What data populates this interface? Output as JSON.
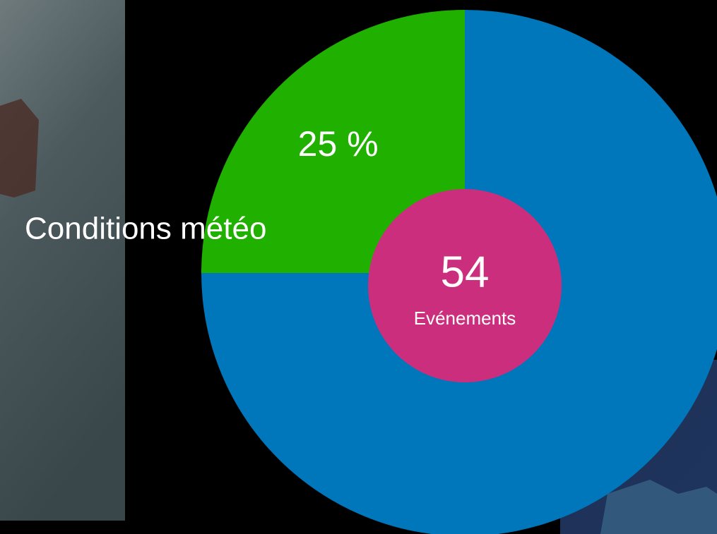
{
  "chart_data": {
    "type": "pie",
    "categories": [
      "Conditions météo",
      null
    ],
    "values": [
      25,
      75
    ],
    "value_labels": [
      "25 %",
      null
    ],
    "colors": [
      "#1fb000",
      "#0077bb"
    ],
    "total": 54,
    "total_label": "Evénements",
    "total_color": "#cc2e7e"
  }
}
